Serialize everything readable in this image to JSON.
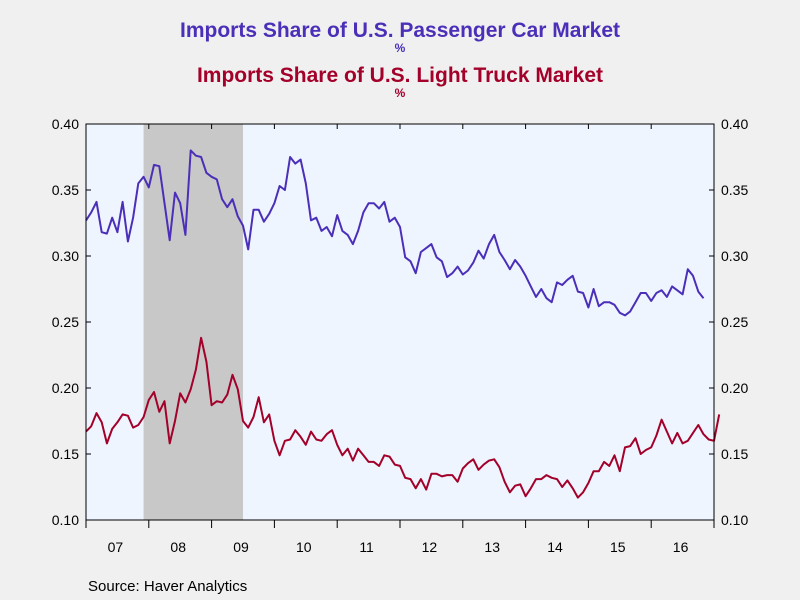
{
  "titles": {
    "car": "Imports Share of U.S. Passenger Car Market",
    "car_unit": "%",
    "truck": "Imports Share of U.S. Light Truck Market",
    "truck_unit": "%"
  },
  "source": "Source:  Haver Analytics",
  "colors": {
    "car": "#4b2fb8",
    "truck": "#a3002a",
    "recession": "#c8c8c8",
    "plot_bg": "#eef5ff"
  },
  "chart_data": {
    "type": "line",
    "title": "Imports Share of U.S. Passenger Car Market / Imports Share of U.S. Light Truck Market",
    "xlabel": "",
    "ylabel": "",
    "x_tick_labels": [
      "07",
      "08",
      "09",
      "10",
      "11",
      "12",
      "13",
      "14",
      "15",
      "16"
    ],
    "x_range": [
      2007.0,
      2017.0
    ],
    "ylim": [
      0.1,
      0.4
    ],
    "y_tick_labels": [
      "0.40",
      "0.35",
      "0.30",
      "0.25",
      "0.20",
      "0.15",
      "0.10"
    ],
    "y_ticks": [
      0.4,
      0.35,
      0.3,
      0.25,
      0.2,
      0.15,
      0.1
    ],
    "grid": false,
    "recession": [
      2007.917,
      2009.5
    ],
    "series": [
      {
        "name": "Imports Share of U.S. Passenger Car Market",
        "start": 2007.0,
        "step": 0.08333,
        "values": [
          0.327,
          0.333,
          0.341,
          0.318,
          0.317,
          0.329,
          0.318,
          0.341,
          0.311,
          0.329,
          0.355,
          0.36,
          0.352,
          0.369,
          0.368,
          0.34,
          0.312,
          0.348,
          0.34,
          0.316,
          0.38,
          0.376,
          0.375,
          0.363,
          0.36,
          0.358,
          0.343,
          0.337,
          0.343,
          0.33,
          0.323,
          0.305,
          0.335,
          0.335,
          0.326,
          0.332,
          0.34,
          0.353,
          0.35,
          0.375,
          0.37,
          0.373,
          0.355,
          0.327,
          0.329,
          0.319,
          0.322,
          0.315,
          0.331,
          0.319,
          0.316,
          0.309,
          0.319,
          0.333,
          0.34,
          0.34,
          0.336,
          0.341,
          0.326,
          0.329,
          0.322,
          0.299,
          0.296,
          0.287,
          0.303,
          0.306,
          0.309,
          0.299,
          0.296,
          0.284,
          0.287,
          0.292,
          0.286,
          0.289,
          0.295,
          0.304,
          0.298,
          0.309,
          0.316,
          0.303,
          0.297,
          0.29,
          0.297,
          0.292,
          0.285,
          0.277,
          0.269,
          0.275,
          0.268,
          0.265,
          0.28,
          0.278,
          0.282,
          0.285,
          0.273,
          0.272,
          0.261,
          0.275,
          0.262,
          0.265,
          0.265,
          0.263,
          0.257,
          0.255,
          0.258,
          0.265,
          0.272,
          0.272,
          0.266,
          0.272,
          0.274,
          0.269,
          0.277,
          0.274,
          0.271,
          0.29,
          0.285,
          0.273,
          0.268
        ]
      },
      {
        "name": "Imports Share of U.S. Light Truck Market",
        "start": 2007.0,
        "step": 0.08333,
        "values": [
          0.167,
          0.171,
          0.181,
          0.174,
          0.158,
          0.169,
          0.174,
          0.18,
          0.179,
          0.17,
          0.172,
          0.178,
          0.191,
          0.197,
          0.182,
          0.19,
          0.158,
          0.175,
          0.196,
          0.189,
          0.199,
          0.214,
          0.238,
          0.22,
          0.187,
          0.19,
          0.189,
          0.195,
          0.21,
          0.199,
          0.175,
          0.17,
          0.178,
          0.193,
          0.174,
          0.18,
          0.16,
          0.149,
          0.16,
          0.161,
          0.168,
          0.163,
          0.157,
          0.167,
          0.161,
          0.16,
          0.165,
          0.168,
          0.157,
          0.149,
          0.154,
          0.145,
          0.154,
          0.149,
          0.144,
          0.144,
          0.141,
          0.149,
          0.148,
          0.142,
          0.141,
          0.132,
          0.131,
          0.124,
          0.131,
          0.123,
          0.135,
          0.135,
          0.133,
          0.134,
          0.134,
          0.129,
          0.139,
          0.143,
          0.146,
          0.138,
          0.142,
          0.145,
          0.146,
          0.14,
          0.129,
          0.121,
          0.126,
          0.127,
          0.118,
          0.124,
          0.131,
          0.131,
          0.134,
          0.132,
          0.131,
          0.125,
          0.13,
          0.124,
          0.117,
          0.121,
          0.128,
          0.137,
          0.137,
          0.144,
          0.141,
          0.149,
          0.137,
          0.155,
          0.156,
          0.162,
          0.15,
          0.153,
          0.155,
          0.164,
          0.176,
          0.167,
          0.158,
          0.166,
          0.158,
          0.16,
          0.166,
          0.172,
          0.165,
          0.161,
          0.16,
          0.18
        ]
      }
    ]
  }
}
